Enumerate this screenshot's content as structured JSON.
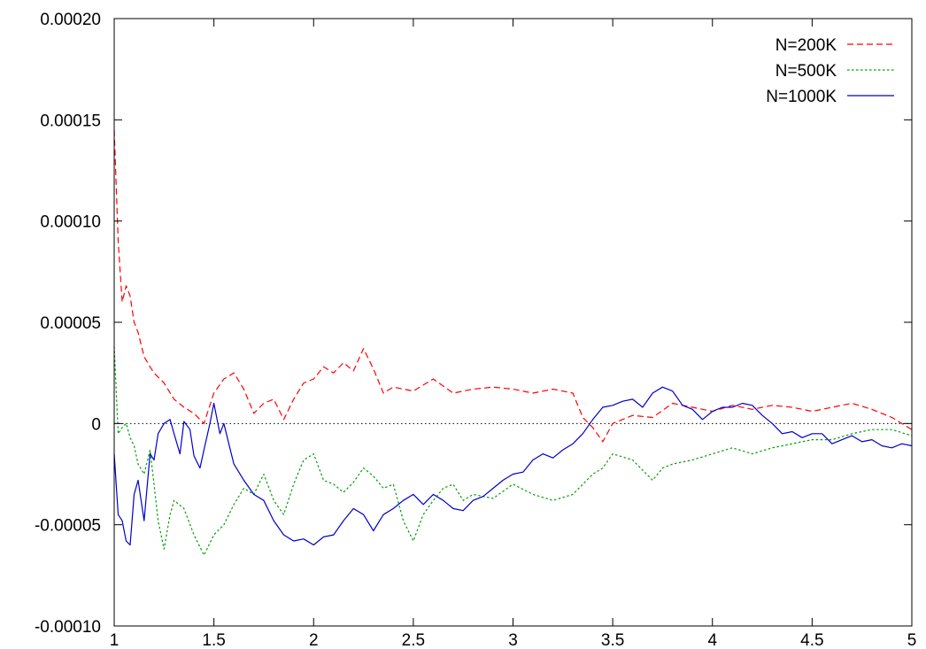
{
  "chart_data": {
    "type": "line",
    "title": "",
    "xlabel": "",
    "ylabel": "",
    "xlim": [
      1,
      5
    ],
    "ylim": [
      -0.0001,
      0.0002
    ],
    "x_ticks": [
      1,
      1.5,
      2,
      2.5,
      3,
      3.5,
      4,
      4.5,
      5
    ],
    "x_tick_labels": [
      "1",
      "1.5",
      "2",
      "2.5",
      "3",
      "3.5",
      "4",
      "4.5",
      "5"
    ],
    "y_ticks": [
      -0.0001,
      -5e-05,
      0,
      5e-05,
      0.0001,
      0.00015,
      0.0002
    ],
    "y_tick_labels": [
      "-0.00010",
      "-0.00005",
      "0",
      "0.00005",
      "0.00010",
      "0.00015",
      "0.00020"
    ],
    "grid": false,
    "zero_line": true,
    "legend_position": "top-right",
    "series": [
      {
        "name": "N=200K",
        "color": "#ff0000",
        "dash": "dashed",
        "x": [
          1.0,
          1.02,
          1.04,
          1.06,
          1.08,
          1.1,
          1.12,
          1.15,
          1.18,
          1.2,
          1.25,
          1.3,
          1.35,
          1.4,
          1.45,
          1.5,
          1.55,
          1.6,
          1.65,
          1.7,
          1.75,
          1.8,
          1.85,
          1.9,
          1.95,
          2.0,
          2.05,
          2.1,
          2.15,
          2.2,
          2.25,
          2.3,
          2.35,
          2.4,
          2.5,
          2.6,
          2.7,
          2.8,
          2.9,
          3.0,
          3.1,
          3.2,
          3.3,
          3.35,
          3.4,
          3.45,
          3.5,
          3.6,
          3.7,
          3.8,
          3.9,
          4.0,
          4.1,
          4.2,
          4.3,
          4.4,
          4.5,
          4.6,
          4.7,
          4.8,
          4.9,
          5.0
        ],
        "values": [
          0.000145,
          9e-05,
          6e-05,
          6.8e-05,
          6.3e-05,
          5e-05,
          4.5e-05,
          3.3e-05,
          2.8e-05,
          2.5e-05,
          2e-05,
          1.2e-05,
          8e-06,
          5e-06,
          0.0,
          1.5e-05,
          2.2e-05,
          2.5e-05,
          1.7e-05,
          5e-06,
          1e-05,
          1.2e-05,
          2e-06,
          1.2e-05,
          2e-05,
          2.2e-05,
          2.8e-05,
          2.5e-05,
          3e-05,
          2.6e-05,
          3.7e-05,
          2.7e-05,
          1.5e-05,
          1.8e-05,
          1.6e-05,
          2.2e-05,
          1.5e-05,
          1.7e-05,
          1.8e-05,
          1.7e-05,
          1.5e-05,
          1.7e-05,
          1.5e-05,
          3e-06,
          -2e-06,
          -9e-06,
          0.0,
          4e-06,
          3e-06,
          1e-05,
          8e-06,
          6e-06,
          9e-06,
          7e-06,
          9e-06,
          8e-06,
          6e-06,
          8e-06,
          1e-05,
          7e-06,
          3e-06,
          -3e-06
        ]
      },
      {
        "name": "N=500K",
        "color": "#00a000",
        "dash": "dotted",
        "x": [
          1.0,
          1.02,
          1.04,
          1.06,
          1.08,
          1.1,
          1.12,
          1.15,
          1.18,
          1.2,
          1.22,
          1.25,
          1.28,
          1.3,
          1.35,
          1.4,
          1.45,
          1.5,
          1.55,
          1.6,
          1.65,
          1.7,
          1.75,
          1.8,
          1.85,
          1.9,
          1.95,
          2.0,
          2.05,
          2.1,
          2.15,
          2.2,
          2.25,
          2.3,
          2.35,
          2.4,
          2.45,
          2.5,
          2.55,
          2.6,
          2.65,
          2.7,
          2.75,
          2.8,
          2.9,
          3.0,
          3.1,
          3.2,
          3.3,
          3.4,
          3.45,
          3.5,
          3.6,
          3.7,
          3.75,
          3.8,
          3.9,
          4.0,
          4.1,
          4.2,
          4.3,
          4.4,
          4.5,
          4.6,
          4.7,
          4.8,
          4.9,
          5.0
        ],
        "values": [
          3.8e-05,
          -5e-06,
          -2e-06,
          0.0,
          -7e-06,
          -1.1e-05,
          -2e-05,
          -2.5e-05,
          -1.3e-05,
          -3e-05,
          -4.8e-05,
          -6.2e-05,
          -4.5e-05,
          -3.8e-05,
          -4.2e-05,
          -5.5e-05,
          -6.5e-05,
          -5.5e-05,
          -5e-05,
          -4e-05,
          -3.2e-05,
          -3.5e-05,
          -2.5e-05,
          -3.8e-05,
          -4.5e-05,
          -3e-05,
          -1.8e-05,
          -1.5e-05,
          -2.8e-05,
          -3e-05,
          -3.4e-05,
          -2.9e-05,
          -2.2e-05,
          -2.6e-05,
          -3.2e-05,
          -3e-05,
          -4.8e-05,
          -5.8e-05,
          -4.5e-05,
          -3.8e-05,
          -3.2e-05,
          -3e-05,
          -3.8e-05,
          -3.5e-05,
          -3.7e-05,
          -3e-05,
          -3.5e-05,
          -3.8e-05,
          -3.5e-05,
          -2.5e-05,
          -2.2e-05,
          -1.5e-05,
          -1.8e-05,
          -2.8e-05,
          -2.2e-05,
          -2e-05,
          -1.8e-05,
          -1.5e-05,
          -1.2e-05,
          -1.5e-05,
          -1.2e-05,
          -1e-05,
          -8e-06,
          -8e-06,
          -5e-06,
          -3e-06,
          -3e-06,
          -6e-06
        ]
      },
      {
        "name": "N=1000K",
        "color": "#0000cc",
        "dash": "solid",
        "x": [
          1.0,
          1.02,
          1.04,
          1.06,
          1.08,
          1.1,
          1.12,
          1.15,
          1.18,
          1.2,
          1.22,
          1.25,
          1.28,
          1.3,
          1.33,
          1.35,
          1.38,
          1.4,
          1.43,
          1.45,
          1.48,
          1.5,
          1.53,
          1.55,
          1.58,
          1.6,
          1.65,
          1.7,
          1.75,
          1.8,
          1.85,
          1.9,
          1.95,
          2.0,
          2.05,
          2.1,
          2.15,
          2.2,
          2.25,
          2.3,
          2.35,
          2.4,
          2.45,
          2.5,
          2.55,
          2.6,
          2.65,
          2.7,
          2.75,
          2.8,
          2.85,
          2.9,
          2.95,
          3.0,
          3.05,
          3.1,
          3.15,
          3.2,
          3.25,
          3.3,
          3.35,
          3.4,
          3.45,
          3.5,
          3.55,
          3.6,
          3.65,
          3.7,
          3.75,
          3.8,
          3.85,
          3.9,
          3.95,
          4.0,
          4.05,
          4.1,
          4.15,
          4.2,
          4.25,
          4.3,
          4.35,
          4.4,
          4.45,
          4.5,
          4.55,
          4.6,
          4.65,
          4.7,
          4.75,
          4.8,
          4.85,
          4.9,
          4.95,
          5.0
        ],
        "values": [
          -1.5e-05,
          -4.5e-05,
          -4.8e-05,
          -5.8e-05,
          -6e-05,
          -3.5e-05,
          -2.8e-05,
          -4.8e-05,
          -1.5e-05,
          -1.8e-05,
          -5e-06,
          -0.0,
          2e-06,
          -5e-06,
          -1.5e-05,
          1e-06,
          -3e-06,
          -1.6e-05,
          -2.2e-05,
          -1.3e-05,
          0.0,
          1e-05,
          -5e-06,
          0.0,
          -1.2e-05,
          -2e-05,
          -2.8e-05,
          -3.5e-05,
          -3.8e-05,
          -4.8e-05,
          -5.5e-05,
          -5.8e-05,
          -5.7e-05,
          -6e-05,
          -5.6e-05,
          -5.5e-05,
          -4.8e-05,
          -4.2e-05,
          -4.5e-05,
          -5.3e-05,
          -4.5e-05,
          -4.2e-05,
          -3.8e-05,
          -3.5e-05,
          -4e-05,
          -3.5e-05,
          -3.8e-05,
          -4.2e-05,
          -4.3e-05,
          -3.8e-05,
          -3.6e-05,
          -3.2e-05,
          -2.8e-05,
          -2.5e-05,
          -2.4e-05,
          -1.8e-05,
          -1.5e-05,
          -1.7e-05,
          -1.3e-05,
          -1e-05,
          -5e-06,
          2e-06,
          8e-06,
          9e-06,
          1.1e-05,
          1.2e-05,
          8e-06,
          1.5e-05,
          1.8e-05,
          1.6e-05,
          9e-06,
          7e-06,
          2e-06,
          6e-06,
          8e-06,
          8e-06,
          1e-05,
          9e-06,
          4e-06,
          0.0,
          -5e-06,
          -4e-06,
          -7e-06,
          -5e-06,
          -5e-06,
          -1e-05,
          -8e-06,
          -6e-06,
          -9e-06,
          -8e-06,
          -1.1e-05,
          -1.2e-05,
          -1e-05,
          -1.1e-05
        ]
      }
    ]
  }
}
